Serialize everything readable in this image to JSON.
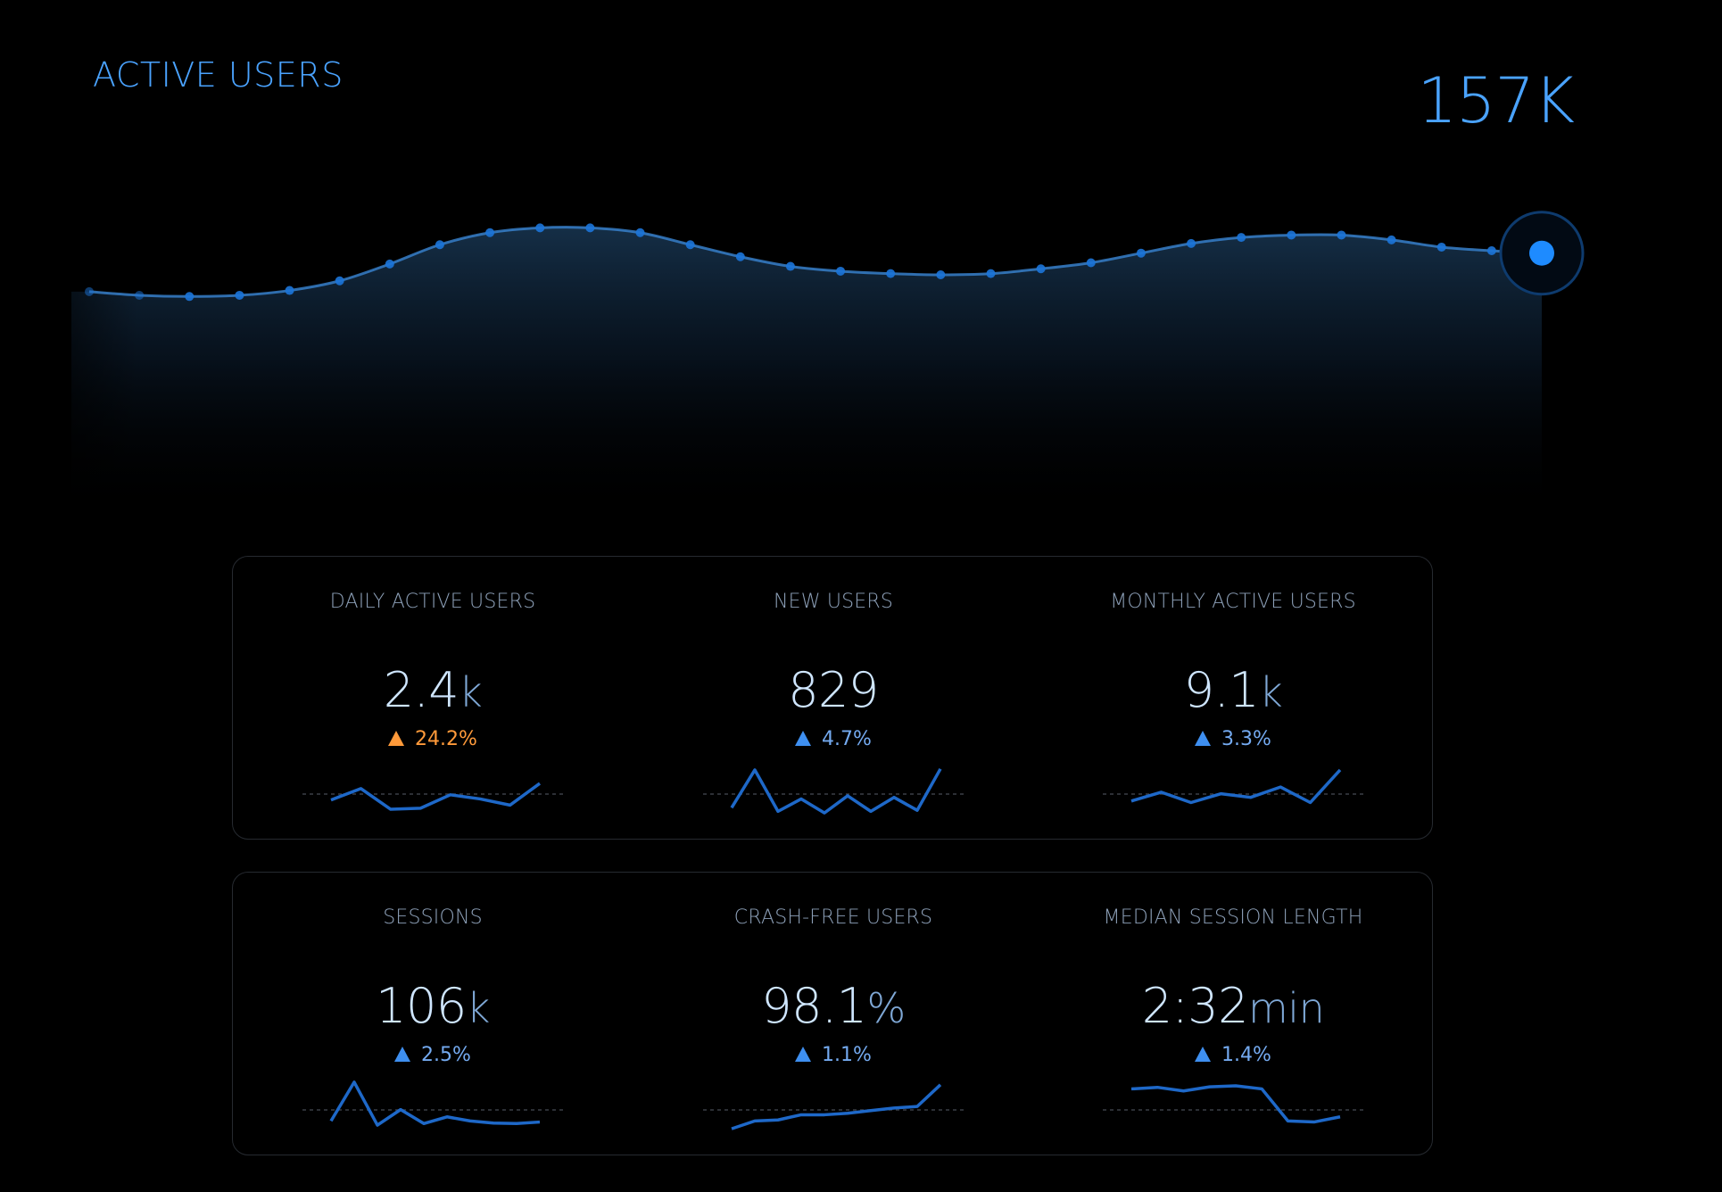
{
  "header": {
    "title": "ACTIVE USERS",
    "total": "157K"
  },
  "colors": {
    "accent": "#4aa3ff",
    "line": "#3f8fe0",
    "spark": "#1e68c8",
    "warning": "#ff9a3a",
    "background": "#000000"
  },
  "chart_data": {
    "type": "area",
    "x": [
      1,
      2,
      3,
      4,
      5,
      6,
      7,
      8,
      9,
      10,
      11,
      12,
      13,
      14,
      15,
      16,
      17,
      18,
      19,
      20,
      21,
      22,
      23,
      24,
      25,
      26,
      27,
      28,
      29,
      30
    ],
    "series": [
      {
        "values": [
          0.06,
          0.03,
          0.02,
          0.03,
          0.07,
          0.15,
          0.29,
          0.45,
          0.55,
          0.59,
          0.59,
          0.55,
          0.45,
          0.35,
          0.27,
          0.23,
          0.21,
          0.2,
          0.21,
          0.25,
          0.3,
          0.38,
          0.46,
          0.51,
          0.53,
          0.53,
          0.49,
          0.43,
          0.4,
          0.38
        ]
      }
    ],
    "ylim": [
      0,
      1
    ],
    "grid": false,
    "legend": "none"
  },
  "panels": [
    {
      "metrics": [
        {
          "label": "DAILY ACTIVE USERS",
          "value": "2.4",
          "unit": "k",
          "delta": "24.2%",
          "status": "warn",
          "spark": [
            0.3,
            0.52,
            0.12,
            0.14,
            0.4,
            0.32,
            0.2,
            0.62
          ]
        },
        {
          "label": "NEW USERS",
          "value": "829",
          "unit": "",
          "delta": "4.7%",
          "status": "up",
          "spark": [
            0.15,
            0.88,
            0.08,
            0.32,
            0.05,
            0.38,
            0.08,
            0.35,
            0.1,
            0.9
          ]
        },
        {
          "label": "MONTHLY ACTIVE USERS",
          "value": "9.1",
          "unit": "k",
          "delta": "3.3%",
          "status": "up",
          "spark": [
            0.28,
            0.45,
            0.25,
            0.42,
            0.35,
            0.55,
            0.25,
            0.88
          ]
        }
      ]
    },
    {
      "metrics": [
        {
          "label": "SESSIONS",
          "value": "106",
          "unit": "k",
          "delta": "2.5%",
          "status": "up",
          "spark": [
            0.2,
            0.95,
            0.12,
            0.42,
            0.15,
            0.28,
            0.2,
            0.16,
            0.15,
            0.18
          ]
        },
        {
          "label": "CRASH-FREE USERS",
          "value": "98.1",
          "unit": "%",
          "delta": "1.1%",
          "status": "up",
          "spark": [
            0.05,
            0.2,
            0.22,
            0.32,
            0.32,
            0.35,
            0.4,
            0.45,
            0.48,
            0.9
          ]
        },
        {
          "label": "MEDIAN SESSION LENGTH",
          "value": "2:32",
          "unit": "min",
          "delta": "1.4%",
          "status": "up",
          "spark": [
            0.82,
            0.85,
            0.78,
            0.86,
            0.88,
            0.82,
            0.2,
            0.18,
            0.28
          ]
        }
      ]
    }
  ]
}
